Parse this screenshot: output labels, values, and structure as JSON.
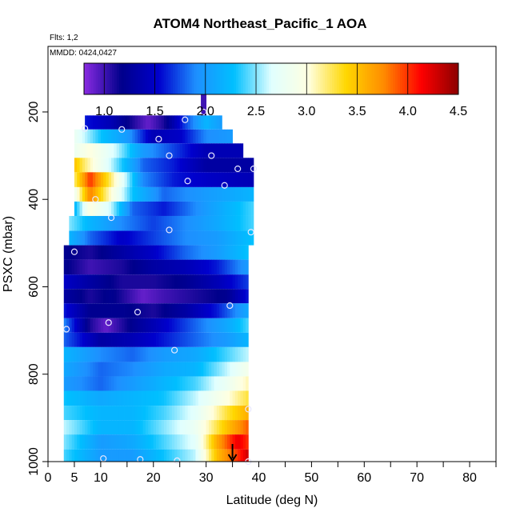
{
  "chart_data": {
    "type": "heatmap",
    "title": "ATOM4 Northeast_Pacific_1 AOA",
    "flights_note": "Flts: 1,2",
    "date_note": "MMDD: 0424,0427",
    "xlabel": "Latitude (deg N)",
    "ylabel": "PSXC (mbar)",
    "xlim": [
      0,
      85
    ],
    "ylim": [
      1000,
      50
    ],
    "y_reversed": true,
    "grid": false,
    "x_ticks": [
      0,
      5,
      10,
      20,
      30,
      40,
      50,
      60,
      70,
      80
    ],
    "x_minor_ticks": [
      0,
      5,
      10,
      15,
      20,
      25,
      30,
      35,
      40,
      45,
      50,
      55,
      60,
      65,
      70,
      75,
      80,
      85
    ],
    "y_ticks": [
      200,
      400,
      600,
      800,
      1000
    ],
    "colorbar": {
      "ticks": [
        1.0,
        1.5,
        2.0,
        2.5,
        3.0,
        3.5,
        4.0,
        4.5
      ],
      "tick_labels": [
        "1.0",
        "1.5",
        "2.0",
        "2.5",
        "3.0",
        "3.5",
        "4.0",
        "4.5"
      ],
      "range": [
        0.8,
        4.5
      ],
      "colors": [
        "#8a2be2",
        "#00008b",
        "#0000cd",
        "#1e90ff",
        "#00bfff",
        "#e0ffff",
        "#ffffe0",
        "#ffd700",
        "#ff8c00",
        "#ff0000",
        "#8b0000"
      ]
    },
    "layers": [
      {
        "p": [
          208,
          240
        ],
        "lat": [
          7,
          33
        ],
        "values": [
          [
            7,
            1.6
          ],
          [
            12,
            1.4
          ],
          [
            16,
            1.1
          ],
          [
            19,
            0.9
          ],
          [
            22,
            1.1
          ],
          [
            26,
            1.7
          ],
          [
            30,
            2.2
          ],
          [
            33,
            2.0
          ]
        ]
      },
      {
        "p": [
          240,
          272
        ],
        "lat": [
          5,
          35
        ],
        "values": [
          [
            5,
            2.8
          ],
          [
            10,
            2.3
          ],
          [
            15,
            2.0
          ],
          [
            20,
            1.4
          ],
          [
            25,
            1.5
          ],
          [
            30,
            1.9
          ],
          [
            35,
            2.0
          ]
        ]
      },
      {
        "p": [
          272,
          305
        ],
        "lat": [
          5,
          37
        ],
        "values": [
          [
            5,
            2.8
          ],
          [
            8,
            3.0
          ],
          [
            13,
            2.6
          ],
          [
            18,
            2.0
          ],
          [
            24,
            1.7
          ],
          [
            30,
            1.4
          ],
          [
            37,
            1.4
          ]
        ]
      },
      {
        "p": [
          305,
          338
        ],
        "lat": [
          5,
          39
        ],
        "values": [
          [
            5,
            3.5
          ],
          [
            7,
            3.2
          ],
          [
            12,
            2.6
          ],
          [
            18,
            1.8
          ],
          [
            24,
            1.6
          ],
          [
            30,
            1.3
          ],
          [
            39,
            1.3
          ]
        ]
      },
      {
        "p": [
          338,
          372
        ],
        "lat": [
          5,
          39
        ],
        "values": [
          [
            5,
            3.2
          ],
          [
            8,
            4.0
          ],
          [
            12,
            3.2
          ],
          [
            18,
            1.9
          ],
          [
            24,
            1.6
          ],
          [
            30,
            1.5
          ],
          [
            39,
            1.4
          ]
        ]
      },
      {
        "p": [
          372,
          405
        ],
        "lat": [
          5,
          39
        ],
        "values": [
          [
            5,
            2.8
          ],
          [
            8,
            3.8
          ],
          [
            11,
            3.2
          ],
          [
            16,
            2.3
          ],
          [
            22,
            1.8
          ],
          [
            30,
            2.0
          ],
          [
            39,
            2.2
          ]
        ]
      },
      {
        "p": [
          405,
          438
        ],
        "lat": [
          5,
          39
        ],
        "values": [
          [
            5,
            2.2
          ],
          [
            8,
            3.0
          ],
          [
            12,
            2.6
          ],
          [
            16,
            1.8
          ],
          [
            22,
            1.6
          ],
          [
            30,
            2.0
          ],
          [
            39,
            2.4
          ]
        ]
      },
      {
        "p": [
          438,
          472
        ],
        "lat": [
          4,
          39
        ],
        "values": [
          [
            4,
            2.5
          ],
          [
            8,
            2.2
          ],
          [
            14,
            1.9
          ],
          [
            20,
            1.7
          ],
          [
            26,
            1.9
          ],
          [
            32,
            2.1
          ],
          [
            39,
            2.4
          ]
        ]
      },
      {
        "p": [
          472,
          505
        ],
        "lat": [
          4,
          39
        ],
        "values": [
          [
            4,
            2.2
          ],
          [
            8,
            1.8
          ],
          [
            14,
            1.5
          ],
          [
            20,
            1.7
          ],
          [
            26,
            1.9
          ],
          [
            32,
            2.0
          ],
          [
            39,
            2.3
          ]
        ]
      },
      {
        "p": [
          505,
          538
        ],
        "lat": [
          3,
          38
        ],
        "values": [
          [
            3,
            1.2
          ],
          [
            8,
            1.1
          ],
          [
            14,
            1.3
          ],
          [
            20,
            1.5
          ],
          [
            26,
            1.8
          ],
          [
            32,
            2.0
          ],
          [
            38,
            2.3
          ]
        ]
      },
      {
        "p": [
          538,
          572
        ],
        "lat": [
          3,
          38
        ],
        "values": [
          [
            3,
            1.2
          ],
          [
            8,
            1.0
          ],
          [
            14,
            1.1
          ],
          [
            20,
            1.3
          ],
          [
            26,
            1.4
          ],
          [
            32,
            1.6
          ],
          [
            38,
            2.0
          ]
        ]
      },
      {
        "p": [
          572,
          605
        ],
        "lat": [
          3,
          38
        ],
        "values": [
          [
            3,
            1.5
          ],
          [
            8,
            1.3
          ],
          [
            14,
            1.1
          ],
          [
            20,
            1.1
          ],
          [
            26,
            1.2
          ],
          [
            32,
            1.4
          ],
          [
            38,
            1.7
          ]
        ]
      },
      {
        "p": [
          605,
          638
        ],
        "lat": [
          3,
          38
        ],
        "values": [
          [
            3,
            1.3
          ],
          [
            8,
            1.1
          ],
          [
            12,
            1.2
          ],
          [
            18,
            0.9
          ],
          [
            22,
            1.0
          ],
          [
            28,
            1.1
          ],
          [
            34,
            1.2
          ],
          [
            38,
            1.6
          ]
        ]
      },
      {
        "p": [
          638,
          672
        ],
        "lat": [
          3,
          38
        ],
        "values": [
          [
            3,
            1.6
          ],
          [
            8,
            1.2
          ],
          [
            14,
            1.2
          ],
          [
            20,
            1.1
          ],
          [
            26,
            1.3
          ],
          [
            32,
            1.6
          ],
          [
            38,
            2.1
          ]
        ]
      },
      {
        "p": [
          672,
          705
        ],
        "lat": [
          3,
          38
        ],
        "values": [
          [
            3,
            1.9
          ],
          [
            8,
            1.1
          ],
          [
            11,
            0.9
          ],
          [
            16,
            1.2
          ],
          [
            22,
            1.5
          ],
          [
            28,
            1.8
          ],
          [
            34,
            2.1
          ],
          [
            38,
            2.4
          ]
        ]
      },
      {
        "p": [
          705,
          738
        ],
        "lat": [
          3,
          38
        ],
        "values": [
          [
            3,
            1.8
          ],
          [
            10,
            1.3
          ],
          [
            16,
            1.4
          ],
          [
            22,
            1.6
          ],
          [
            28,
            1.8
          ],
          [
            34,
            2.0
          ],
          [
            38,
            2.2
          ]
        ]
      },
      {
        "p": [
          738,
          772
        ],
        "lat": [
          3,
          38
        ],
        "values": [
          [
            3,
            2.2
          ],
          [
            10,
            1.9
          ],
          [
            16,
            1.8
          ],
          [
            22,
            2.0
          ],
          [
            28,
            2.1
          ],
          [
            34,
            2.4
          ],
          [
            38,
            2.6
          ]
        ]
      },
      {
        "p": [
          772,
          805
        ],
        "lat": [
          3,
          38
        ],
        "values": [
          [
            3,
            2.1
          ],
          [
            10,
            1.8
          ],
          [
            16,
            1.9
          ],
          [
            22,
            2.1
          ],
          [
            28,
            2.2
          ],
          [
            34,
            2.6
          ],
          [
            38,
            2.9
          ]
        ]
      },
      {
        "p": [
          805,
          838
        ],
        "lat": [
          3,
          38
        ],
        "values": [
          [
            3,
            2.0
          ],
          [
            10,
            1.8
          ],
          [
            16,
            2.0
          ],
          [
            22,
            2.2
          ],
          [
            28,
            2.4
          ],
          [
            34,
            2.8
          ],
          [
            38,
            3.1
          ]
        ]
      },
      {
        "p": [
          838,
          872
        ],
        "lat": [
          3,
          38
        ],
        "values": [
          [
            3,
            2.3
          ],
          [
            10,
            2.1
          ],
          [
            16,
            2.2
          ],
          [
            22,
            2.3
          ],
          [
            28,
            2.6
          ],
          [
            34,
            3.0
          ],
          [
            38,
            3.3
          ]
        ]
      },
      {
        "p": [
          872,
          905
        ],
        "lat": [
          3,
          38
        ],
        "values": [
          [
            3,
            2.4
          ],
          [
            10,
            2.2
          ],
          [
            16,
            2.2
          ],
          [
            22,
            2.4
          ],
          [
            28,
            2.7
          ],
          [
            34,
            3.3
          ],
          [
            38,
            3.6
          ]
        ]
      },
      {
        "p": [
          905,
          938
        ],
        "lat": [
          3,
          38
        ],
        "values": [
          [
            3,
            2.6
          ],
          [
            10,
            2.2
          ],
          [
            16,
            2.2
          ],
          [
            22,
            2.5
          ],
          [
            28,
            2.8
          ],
          [
            34,
            3.5
          ],
          [
            38,
            3.9
          ]
        ]
      },
      {
        "p": [
          938,
          972
        ],
        "lat": [
          3,
          38
        ],
        "values": [
          [
            3,
            2.5
          ],
          [
            10,
            2.0
          ],
          [
            16,
            2.1
          ],
          [
            22,
            2.4
          ],
          [
            28,
            2.7
          ],
          [
            32,
            3.6
          ],
          [
            36,
            4.2
          ],
          [
            38,
            4.0
          ]
        ]
      },
      {
        "p": [
          972,
          1000
        ],
        "lat": [
          3,
          38
        ],
        "values": [
          [
            3,
            2.4
          ],
          [
            10,
            2.0
          ],
          [
            16,
            2.0
          ],
          [
            22,
            2.3
          ],
          [
            28,
            2.6
          ],
          [
            32,
            3.5
          ],
          [
            36,
            4.0
          ],
          [
            38,
            4.3
          ]
        ]
      },
      {
        "p": [
          150,
          208
        ],
        "lat": [
          29,
          30
        ],
        "values": [
          [
            29,
            1.0
          ],
          [
            30,
            1.0
          ]
        ]
      }
    ],
    "points": [
      [
        7,
        238
      ],
      [
        14,
        240
      ],
      [
        21,
        262
      ],
      [
        26,
        218
      ],
      [
        29.5,
        200
      ],
      [
        23,
        300
      ],
      [
        31,
        300
      ],
      [
        36,
        330
      ],
      [
        39,
        330
      ],
      [
        26.5,
        358
      ],
      [
        33.5,
        368
      ],
      [
        9,
        400
      ],
      [
        12,
        442
      ],
      [
        23,
        470
      ],
      [
        38.5,
        475
      ],
      [
        5,
        520
      ],
      [
        17,
        658
      ],
      [
        34.5,
        643
      ],
      [
        11.5,
        682
      ],
      [
        3.5,
        697
      ],
      [
        24,
        745
      ],
      [
        38,
        880
      ],
      [
        10.5,
        993
      ],
      [
        17.5,
        995
      ],
      [
        24.5,
        998
      ],
      [
        38,
        1000
      ]
    ],
    "marker_latitude": 35
  }
}
